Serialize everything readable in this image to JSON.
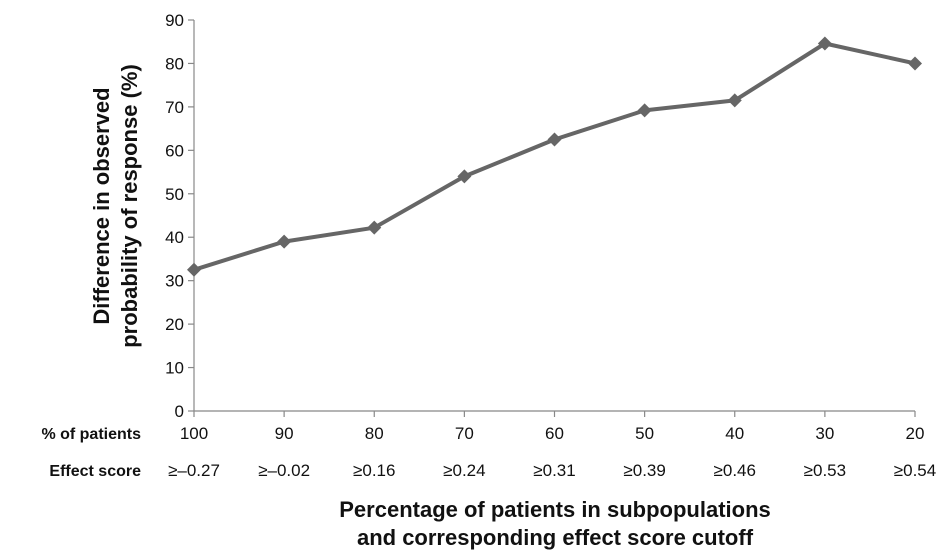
{
  "chart_data": {
    "type": "line",
    "x": [
      "100",
      "90",
      "80",
      "70",
      "60",
      "50",
      "40",
      "30",
      "20"
    ],
    "effect_scores": [
      "≥–0.27",
      "≥–0.02",
      "≥0.16",
      "≥0.24",
      "≥0.31",
      "≥0.39",
      "≥0.46",
      "≥0.53",
      "≥0.54"
    ],
    "values": [
      32.5,
      39,
      42.2,
      54,
      62.5,
      69.2,
      71.5,
      84.6,
      80
    ],
    "ylim": [
      0,
      90
    ],
    "yticks": [
      0,
      10,
      20,
      30,
      40,
      50,
      60,
      70,
      80,
      90
    ],
    "ylabel_line1": "Difference in observed",
    "ylabel_line2": "probability of response (%)",
    "xlabel_line1": "Percentage of patients in subpopulations",
    "xlabel_line2": "and corresponding effect score cutoff",
    "row_label_patients": "% of patients",
    "row_label_effect": "Effect score",
    "line_color": "#666666",
    "marker": "diamond",
    "grid": false
  }
}
